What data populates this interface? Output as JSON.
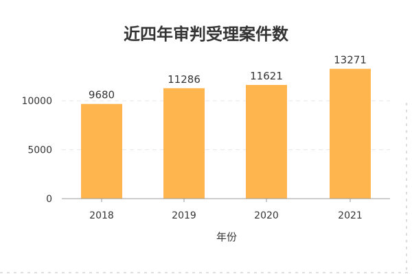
{
  "chart_data": {
    "type": "bar",
    "title": "近四年审判受理案件数",
    "xlabel": "年份",
    "ylabel": "",
    "categories": [
      "2018",
      "2019",
      "2020",
      "2021"
    ],
    "values": [
      9680,
      11286,
      11621,
      13271
    ],
    "value_labels": [
      "9680",
      "11286",
      "11621",
      "13271"
    ],
    "yticks": [
      "0",
      "5000",
      "10000"
    ],
    "ytick_values": [
      0,
      5000,
      10000
    ],
    "ylim": [
      0,
      14000
    ],
    "grid": true,
    "legend": "none",
    "bar_color": "#FFB54D"
  }
}
